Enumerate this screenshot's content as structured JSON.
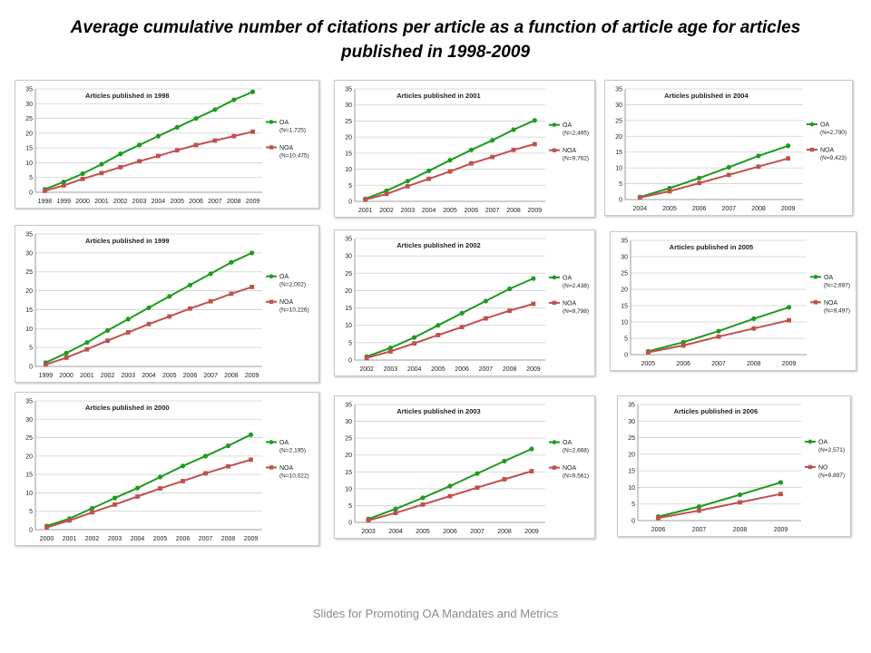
{
  "slide": {
    "title": "Average cumulative number of citations per article as a function of article age for articles published in 1998-2009",
    "footer": "Slides for Promoting OA Mandates and Metrics"
  },
  "colors": {
    "oa": "#1f9a1f",
    "noa": "#c0504d",
    "grid": "#cfcfcf",
    "axis": "#7f7f7f"
  },
  "chart_data": [
    {
      "type": "line",
      "title": "Articles published in 1998",
      "categories": [
        "1998",
        "1999",
        "2000",
        "2001",
        "2002",
        "2003",
        "2004",
        "2005",
        "2006",
        "2007",
        "2008",
        "2009"
      ],
      "ylim": [
        0,
        35
      ],
      "yticks": [
        "0",
        "5",
        "10",
        "15",
        "20",
        "25",
        "30",
        "35"
      ],
      "grid": true,
      "legend": "right",
      "series": [
        {
          "name": "OA",
          "note": "(N=1,725)",
          "values": [
            1,
            3.5,
            6.3,
            9.5,
            13,
            16,
            19,
            22,
            25,
            28,
            31.3,
            34
          ]
        },
        {
          "name": "NOA",
          "note": "(N=10,475)",
          "values": [
            0.5,
            2.3,
            4.5,
            6.5,
            8.5,
            10.5,
            12.3,
            14.2,
            16,
            17.5,
            19,
            20.5
          ]
        }
      ]
    },
    {
      "type": "line",
      "title": "Articles published in 2001",
      "categories": [
        "2001",
        "2002",
        "2003",
        "2004",
        "2005",
        "2006",
        "2007",
        "2008",
        "2009"
      ],
      "ylim": [
        0,
        35
      ],
      "yticks": [
        "0",
        "5",
        "10",
        "15",
        "20",
        "25",
        "30",
        "35"
      ],
      "grid": true,
      "legend": "right",
      "series": [
        {
          "name": "OA",
          "note": "(N=2,465)",
          "values": [
            0.8,
            3.3,
            6.3,
            9.5,
            12.8,
            16,
            19,
            22.3,
            25.2
          ]
        },
        {
          "name": "NOA",
          "note": "(N=9,762)",
          "values": [
            0.5,
            2.3,
            4.7,
            7,
            9.3,
            11.8,
            13.8,
            16,
            17.8
          ]
        }
      ]
    },
    {
      "type": "line",
      "title": "Articles published in 2004",
      "categories": [
        "2004",
        "2005",
        "2006",
        "2007",
        "2008",
        "2009"
      ],
      "ylim": [
        0,
        35
      ],
      "yticks": [
        "0",
        "5",
        "10",
        "15",
        "20",
        "25",
        "30",
        "35"
      ],
      "grid": true,
      "legend": "right",
      "series": [
        {
          "name": "OA",
          "note": "(N=2,790)",
          "values": [
            0.8,
            3.6,
            6.8,
            10.2,
            13.8,
            17
          ]
        },
        {
          "name": "NOA",
          "note": "(N=9,423)",
          "values": [
            0.6,
            2.6,
            5.2,
            7.8,
            10.4,
            13
          ]
        }
      ]
    },
    {
      "type": "line",
      "title": "Articles published in 1999",
      "categories": [
        "1999",
        "2000",
        "2001",
        "2002",
        "2003",
        "2004",
        "2005",
        "2006",
        "2007",
        "2008",
        "2009"
      ],
      "ylim": [
        0,
        35
      ],
      "yticks": [
        "0",
        "5",
        "10",
        "15",
        "20",
        "25",
        "30",
        "35"
      ],
      "grid": true,
      "legend": "right",
      "series": [
        {
          "name": "OA",
          "note": "(N=2,002)",
          "values": [
            1,
            3.5,
            6.3,
            9.5,
            12.5,
            15.5,
            18.5,
            21.5,
            24.5,
            27.5,
            30
          ]
        },
        {
          "name": "NOA",
          "note": "(N=10,226)",
          "values": [
            0.5,
            2.3,
            4.5,
            6.8,
            9,
            11.2,
            13.2,
            15.3,
            17.2,
            19.2,
            21
          ]
        }
      ]
    },
    {
      "type": "line",
      "title": "Articles published in 2002",
      "categories": [
        "2002",
        "2003",
        "2004",
        "2005",
        "2006",
        "2007",
        "2008",
        "2009"
      ],
      "ylim": [
        0,
        35
      ],
      "yticks": [
        "0",
        "5",
        "10",
        "15",
        "20",
        "25",
        "30",
        "35"
      ],
      "grid": true,
      "legend": "right",
      "series": [
        {
          "name": "OA",
          "note": "(N=2,438)",
          "values": [
            1,
            3.5,
            6.5,
            10,
            13.5,
            17,
            20.5,
            23.5
          ]
        },
        {
          "name": "NOA",
          "note": "(N=9,798)",
          "values": [
            0.6,
            2.5,
            4.8,
            7.2,
            9.5,
            12,
            14.2,
            16.2
          ]
        }
      ]
    },
    {
      "type": "line",
      "title": "Articles published in 2005",
      "categories": [
        "2005",
        "2006",
        "2007",
        "2008",
        "2009"
      ],
      "ylim": [
        0,
        35
      ],
      "yticks": [
        "0",
        "5",
        "10",
        "15",
        "20",
        "25",
        "30",
        "35"
      ],
      "grid": true,
      "legend": "right",
      "series": [
        {
          "name": "OA",
          "note": "(N=2,697)",
          "values": [
            1,
            3.8,
            7.2,
            11,
            14.5
          ]
        },
        {
          "name": "NOA",
          "note": "(N=9,497)",
          "values": [
            0.7,
            2.8,
            5.5,
            8,
            10.5
          ]
        }
      ]
    },
    {
      "type": "line",
      "title": "Articles published in 2000",
      "categories": [
        "2000",
        "2001",
        "2002",
        "2003",
        "2004",
        "2005",
        "2006",
        "2007",
        "2008",
        "2009"
      ],
      "ylim": [
        0,
        35
      ],
      "yticks": [
        "0",
        "5",
        "10",
        "15",
        "20",
        "25",
        "30",
        "35"
      ],
      "grid": true,
      "legend": "right",
      "series": [
        {
          "name": "OA",
          "note": "(N=2,195)",
          "values": [
            1,
            3,
            5.8,
            8.6,
            11.3,
            14.3,
            17.3,
            20,
            22.8,
            25.8
          ]
        },
        {
          "name": "NOA",
          "note": "(N=10,022)",
          "values": [
            0.6,
            2.5,
            4.7,
            6.8,
            9,
            11.2,
            13.2,
            15.3,
            17.2,
            19
          ]
        }
      ]
    },
    {
      "type": "line",
      "title": "Articles published in 2003",
      "categories": [
        "2003",
        "2004",
        "2005",
        "2006",
        "2007",
        "2008",
        "2009"
      ],
      "ylim": [
        0,
        35
      ],
      "yticks": [
        "0",
        "5",
        "10",
        "15",
        "20",
        "25",
        "30",
        "35"
      ],
      "grid": true,
      "legend": "right",
      "series": [
        {
          "name": "OA",
          "note": "(N=2,668)",
          "values": [
            1,
            4,
            7.3,
            10.8,
            14.5,
            18.2,
            21.8
          ]
        },
        {
          "name": "NOA",
          "note": "(N=9,561)",
          "values": [
            0.6,
            2.8,
            5.3,
            7.8,
            10.3,
            12.8,
            15.2
          ]
        }
      ]
    },
    {
      "type": "line",
      "title": "Articles published in 2006",
      "categories": [
        "2006",
        "2007",
        "2008",
        "2009"
      ],
      "ylim": [
        0,
        35
      ],
      "yticks": [
        "0",
        "5",
        "10",
        "15",
        "20",
        "25",
        "30",
        "35"
      ],
      "grid": true,
      "legend": "right",
      "series": [
        {
          "name": "OA",
          "note": "(N=2,571)",
          "values": [
            1.2,
            4.2,
            7.8,
            11.5
          ]
        },
        {
          "name": "NO",
          "note": "(N=9,897)",
          "values": [
            0.8,
            3,
            5.5,
            8
          ]
        }
      ]
    }
  ]
}
